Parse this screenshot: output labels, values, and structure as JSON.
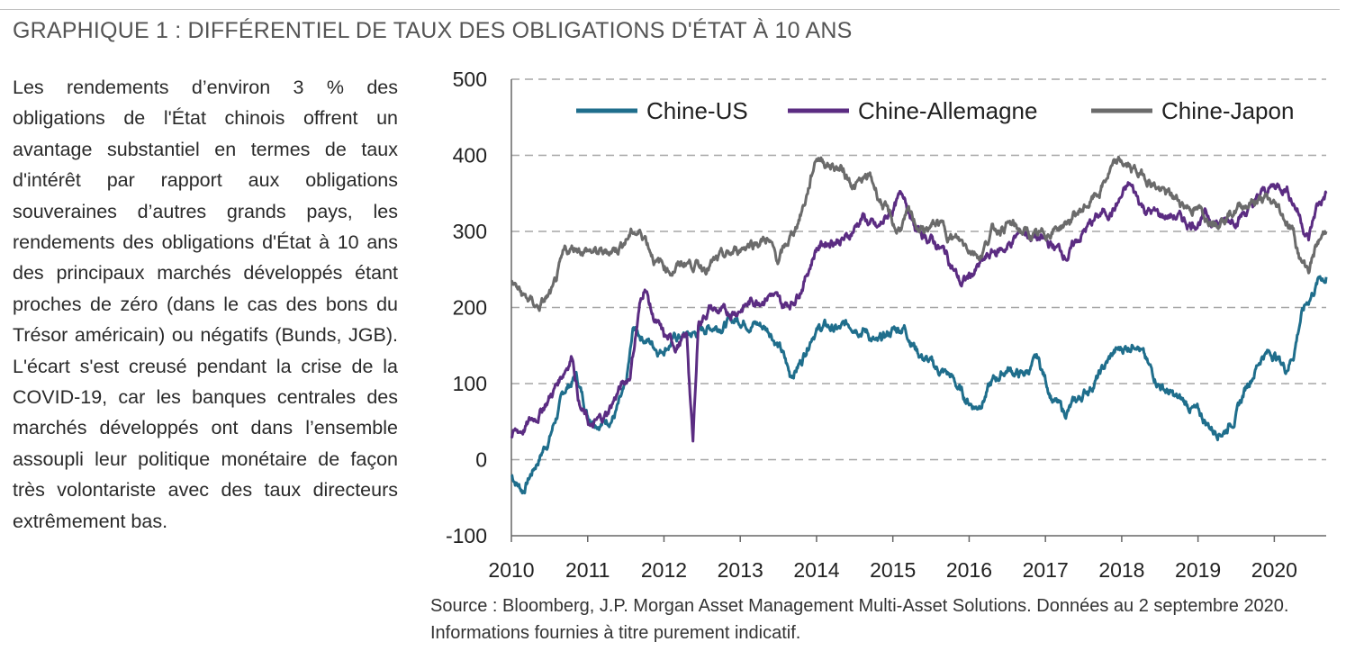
{
  "header": {
    "title": "GRAPHIQUE 1 : DIFFÉRENTIEL DE TAUX DES OBLIGATIONS D'ÉTAT À 10 ANS"
  },
  "commentary": {
    "text": "Les rendements d’environ 3 % des obligations de l'État chinois offrent un avantage substantiel en termes de taux d'intérêt par rapport aux obligations souveraines d’autres grands pays, les rendements des obligations d'État à 10 ans des principaux marchés développés étant proches de zéro (dans le cas des bons du Trésor américain) ou négatifs (Bunds, JGB). L'écart s'est creusé pendant la crise de la COVID-19, car les banques centrales des marchés développés ont dans l’ensemble assoupli leur politique monétaire de façon très volontariste avec des taux directeurs extrêmement bas."
  },
  "footer": {
    "source_line1": "Source : Bloomberg, J.P. Morgan Asset Management Multi-Asset Solutions. Données au 2 septembre 2020.",
    "source_line2": "Informations fournies à titre purement indicatif."
  },
  "chart_data": {
    "type": "line",
    "title": "",
    "xlabel": "",
    "ylabel": "",
    "xlim": [
      2010.0,
      2020.68
    ],
    "ylim": [
      -100,
      500
    ],
    "yticks": [
      -100,
      0,
      100,
      200,
      300,
      400,
      500
    ],
    "xticks": [
      2010,
      2011,
      2012,
      2013,
      2014,
      2015,
      2016,
      2017,
      2018,
      2019,
      2020
    ],
    "grid": "horizontal dashed",
    "legend": "top",
    "series": [
      {
        "name": "Chine-US",
        "color": "#1f6e8c",
        "points": [
          [
            2010.0,
            -20
          ],
          [
            2010.15,
            -40
          ],
          [
            2010.3,
            -10
          ],
          [
            2010.5,
            30
          ],
          [
            2010.7,
            90
          ],
          [
            2010.85,
            110
          ],
          [
            2011.0,
            60
          ],
          [
            2011.2,
            50
          ],
          [
            2011.35,
            60
          ],
          [
            2011.5,
            90
          ],
          [
            2011.6,
            170
          ],
          [
            2011.75,
            160
          ],
          [
            2011.95,
            145
          ],
          [
            2012.15,
            160
          ],
          [
            2012.4,
            165
          ],
          [
            2012.6,
            175
          ],
          [
            2012.8,
            180
          ],
          [
            2013.0,
            185
          ],
          [
            2013.2,
            180
          ],
          [
            2013.4,
            170
          ],
          [
            2013.55,
            140
          ],
          [
            2013.65,
            110
          ],
          [
            2013.8,
            130
          ],
          [
            2013.95,
            170
          ],
          [
            2014.1,
            175
          ],
          [
            2014.3,
            170
          ],
          [
            2014.5,
            180
          ],
          [
            2014.65,
            170
          ],
          [
            2014.8,
            150
          ],
          [
            2015.0,
            170
          ],
          [
            2015.15,
            175
          ],
          [
            2015.35,
            140
          ],
          [
            2015.55,
            120
          ],
          [
            2015.75,
            110
          ],
          [
            2015.95,
            80
          ],
          [
            2016.1,
            70
          ],
          [
            2016.3,
            100
          ],
          [
            2016.5,
            120
          ],
          [
            2016.7,
            110
          ],
          [
            2016.9,
            130
          ],
          [
            2017.1,
            80
          ],
          [
            2017.25,
            60
          ],
          [
            2017.45,
            80
          ],
          [
            2017.7,
            110
          ],
          [
            2017.9,
            140
          ],
          [
            2018.1,
            150
          ],
          [
            2018.2,
            160
          ],
          [
            2018.35,
            120
          ],
          [
            2018.5,
            100
          ],
          [
            2018.7,
            80
          ],
          [
            2018.9,
            70
          ],
          [
            2019.0,
            60
          ],
          [
            2019.2,
            40
          ],
          [
            2019.35,
            40
          ],
          [
            2019.5,
            60
          ],
          [
            2019.65,
            100
          ],
          [
            2019.85,
            140
          ],
          [
            2020.0,
            140
          ],
          [
            2020.15,
            120
          ],
          [
            2020.25,
            140
          ],
          [
            2020.35,
            190
          ],
          [
            2020.5,
            220
          ],
          [
            2020.6,
            240
          ],
          [
            2020.68,
            240
          ]
        ]
      },
      {
        "name": "Chine-Allemagne",
        "color": "#5b2c82",
        "points": [
          [
            2010.0,
            30
          ],
          [
            2010.15,
            40
          ],
          [
            2010.35,
            60
          ],
          [
            2010.55,
            90
          ],
          [
            2010.7,
            120
          ],
          [
            2010.8,
            140
          ],
          [
            2010.9,
            70
          ],
          [
            2011.05,
            40
          ],
          [
            2011.25,
            60
          ],
          [
            2011.4,
            90
          ],
          [
            2011.55,
            110
          ],
          [
            2011.68,
            200
          ],
          [
            2011.75,
            230
          ],
          [
            2011.85,
            190
          ],
          [
            2012.0,
            160
          ],
          [
            2012.15,
            150
          ],
          [
            2012.3,
            160
          ],
          [
            2012.38,
            20
          ],
          [
            2012.45,
            180
          ],
          [
            2012.6,
            200
          ],
          [
            2012.8,
            190
          ],
          [
            2013.0,
            200
          ],
          [
            2013.2,
            210
          ],
          [
            2013.4,
            220
          ],
          [
            2013.55,
            200
          ],
          [
            2013.7,
            210
          ],
          [
            2013.85,
            240
          ],
          [
            2014.0,
            280
          ],
          [
            2014.2,
            290
          ],
          [
            2014.4,
            290
          ],
          [
            2014.6,
            320
          ],
          [
            2014.8,
            300
          ],
          [
            2015.0,
            330
          ],
          [
            2015.15,
            350
          ],
          [
            2015.3,
            300
          ],
          [
            2015.5,
            290
          ],
          [
            2015.7,
            270
          ],
          [
            2015.9,
            230
          ],
          [
            2016.1,
            250
          ],
          [
            2016.3,
            270
          ],
          [
            2016.5,
            280
          ],
          [
            2016.7,
            300
          ],
          [
            2016.9,
            290
          ],
          [
            2017.1,
            280
          ],
          [
            2017.3,
            270
          ],
          [
            2017.5,
            300
          ],
          [
            2017.7,
            320
          ],
          [
            2017.9,
            330
          ],
          [
            2018.1,
            360
          ],
          [
            2018.3,
            330
          ],
          [
            2018.5,
            320
          ],
          [
            2018.7,
            320
          ],
          [
            2018.9,
            310
          ],
          [
            2019.1,
            320
          ],
          [
            2019.3,
            310
          ],
          [
            2019.5,
            320
          ],
          [
            2019.7,
            330
          ],
          [
            2019.85,
            350
          ],
          [
            2020.0,
            360
          ],
          [
            2020.15,
            360
          ],
          [
            2020.3,
            330
          ],
          [
            2020.45,
            290
          ],
          [
            2020.55,
            330
          ],
          [
            2020.68,
            350
          ]
        ]
      },
      {
        "name": "Chine-Japon",
        "color": "#6b6b6b",
        "points": [
          [
            2010.0,
            235
          ],
          [
            2010.15,
            215
          ],
          [
            2010.35,
            200
          ],
          [
            2010.55,
            220
          ],
          [
            2010.7,
            270
          ],
          [
            2010.85,
            280
          ],
          [
            2011.0,
            275
          ],
          [
            2011.2,
            270
          ],
          [
            2011.4,
            280
          ],
          [
            2011.6,
            300
          ],
          [
            2011.75,
            295
          ],
          [
            2011.9,
            260
          ],
          [
            2012.1,
            250
          ],
          [
            2012.3,
            260
          ],
          [
            2012.5,
            255
          ],
          [
            2012.7,
            260
          ],
          [
            2012.9,
            270
          ],
          [
            2013.1,
            285
          ],
          [
            2013.35,
            290
          ],
          [
            2013.5,
            260
          ],
          [
            2013.7,
            300
          ],
          [
            2013.85,
            340
          ],
          [
            2014.0,
            400
          ],
          [
            2014.15,
            390
          ],
          [
            2014.35,
            380
          ],
          [
            2014.5,
            360
          ],
          [
            2014.7,
            370
          ],
          [
            2014.9,
            330
          ],
          [
            2015.05,
            300
          ],
          [
            2015.2,
            320
          ],
          [
            2015.4,
            300
          ],
          [
            2015.6,
            310
          ],
          [
            2015.8,
            290
          ],
          [
            2016.0,
            280
          ],
          [
            2016.15,
            270
          ],
          [
            2016.3,
            300
          ],
          [
            2016.5,
            310
          ],
          [
            2016.7,
            300
          ],
          [
            2016.9,
            290
          ],
          [
            2017.05,
            300
          ],
          [
            2017.25,
            310
          ],
          [
            2017.5,
            330
          ],
          [
            2017.7,
            350
          ],
          [
            2017.85,
            380
          ],
          [
            2018.0,
            390
          ],
          [
            2018.15,
            380
          ],
          [
            2018.35,
            370
          ],
          [
            2018.55,
            350
          ],
          [
            2018.75,
            340
          ],
          [
            2018.95,
            330
          ],
          [
            2019.1,
            320
          ],
          [
            2019.3,
            320
          ],
          [
            2019.5,
            330
          ],
          [
            2019.7,
            340
          ],
          [
            2019.9,
            340
          ],
          [
            2020.05,
            330
          ],
          [
            2020.25,
            300
          ],
          [
            2020.35,
            260
          ],
          [
            2020.45,
            250
          ],
          [
            2020.55,
            280
          ],
          [
            2020.68,
            300
          ]
        ]
      }
    ]
  }
}
